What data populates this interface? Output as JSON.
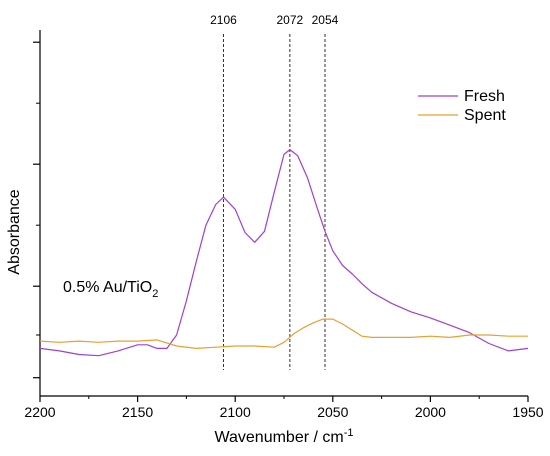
{
  "chart_data": {
    "type": "line",
    "title": "",
    "annotation": "0.5% Au/TiO₂",
    "xlabel": "Wavenumber / cm⁻¹",
    "ylabel": "Absorbance",
    "x_reversed": true,
    "xlim": [
      2200,
      1950
    ],
    "ylim": [
      -0.4,
      2.6
    ],
    "xticks": [
      2200,
      2150,
      2100,
      2050,
      2000,
      1950
    ],
    "xtick_labels": [
      "2200",
      "2150",
      "2100",
      "2050",
      "2000",
      "1950"
    ],
    "y_tick_labels_shown": false,
    "grid": false,
    "legend_position": "top-right",
    "reference_lines": [
      {
        "x": 2106,
        "label": "2106"
      },
      {
        "x": 2072,
        "label": "2072"
      },
      {
        "x": 2054,
        "label": "2054"
      }
    ],
    "series": [
      {
        "name": "Fresh",
        "color": "#a040d0",
        "x": [
          2200,
          2190,
          2180,
          2170,
          2160,
          2150,
          2145,
          2140,
          2135,
          2130,
          2125,
          2120,
          2115,
          2110,
          2106,
          2100,
          2095,
          2090,
          2085,
          2080,
          2075,
          2072,
          2068,
          2063,
          2058,
          2054,
          2050,
          2045,
          2040,
          2035,
          2030,
          2020,
          2010,
          2000,
          1990,
          1980,
          1970,
          1960,
          1950
        ],
        "y": [
          -0.01,
          -0.03,
          -0.06,
          -0.07,
          -0.03,
          0.02,
          0.02,
          -0.01,
          -0.01,
          0.1,
          0.38,
          0.7,
          1.0,
          1.17,
          1.23,
          1.13,
          0.94,
          0.86,
          0.95,
          1.27,
          1.58,
          1.62,
          1.57,
          1.39,
          1.14,
          0.95,
          0.79,
          0.67,
          0.6,
          0.52,
          0.45,
          0.36,
          0.29,
          0.24,
          0.18,
          0.12,
          0.03,
          -0.03,
          -0.01
        ]
      },
      {
        "name": "Spent",
        "color": "#e8a030",
        "x": [
          2200,
          2190,
          2180,
          2170,
          2160,
          2150,
          2140,
          2130,
          2120,
          2110,
          2100,
          2090,
          2080,
          2075,
          2070,
          2065,
          2060,
          2055,
          2050,
          2045,
          2040,
          2035,
          2030,
          2020,
          2010,
          2000,
          1990,
          1980,
          1970,
          1960,
          1950
        ],
        "y": [
          0.05,
          0.04,
          0.05,
          0.04,
          0.05,
          0.05,
          0.06,
          0.01,
          -0.01,
          0.0,
          0.01,
          0.01,
          0.0,
          0.04,
          0.11,
          0.16,
          0.2,
          0.23,
          0.23,
          0.19,
          0.14,
          0.09,
          0.08,
          0.08,
          0.08,
          0.09,
          0.08,
          0.1,
          0.1,
          0.09,
          0.09
        ]
      }
    ]
  }
}
